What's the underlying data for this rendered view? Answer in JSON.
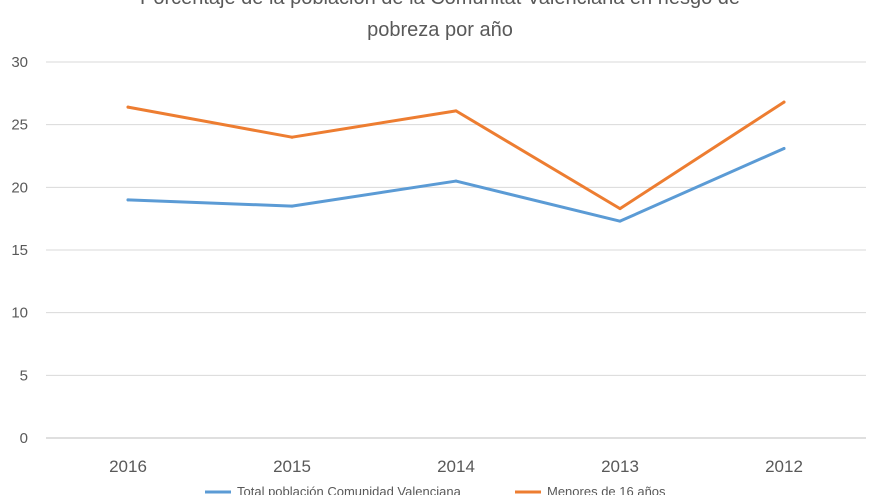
{
  "chart_data": {
    "type": "line",
    "title": "Porcentaje de la población de la Comunitat Valenciana en riesgo de pobreza por año",
    "title_lines": [
      "Porcentaje de la población de la Comunitat Valenciana en riesgo de",
      "pobreza por año"
    ],
    "categories": [
      "2016",
      "2015",
      "2014",
      "2013",
      "2012"
    ],
    "ylim": [
      0,
      30
    ],
    "yticks": [
      0,
      5,
      10,
      15,
      20,
      25,
      30
    ],
    "ytick_labels": [
      "0",
      "5",
      "10",
      "15",
      "20",
      "25",
      "30"
    ],
    "xlabel": "",
    "ylabel": "",
    "grid": true,
    "legend_position": "bottom",
    "series": [
      {
        "name": "Total población Comunidad Valenciana",
        "color": "#5b9bd5",
        "values": [
          19.0,
          18.5,
          20.5,
          17.3,
          23.1
        ]
      },
      {
        "name": "Menores de 16 años",
        "color": "#ed7d31",
        "values": [
          26.4,
          24.0,
          26.1,
          18.3,
          26.8
        ]
      }
    ]
  }
}
